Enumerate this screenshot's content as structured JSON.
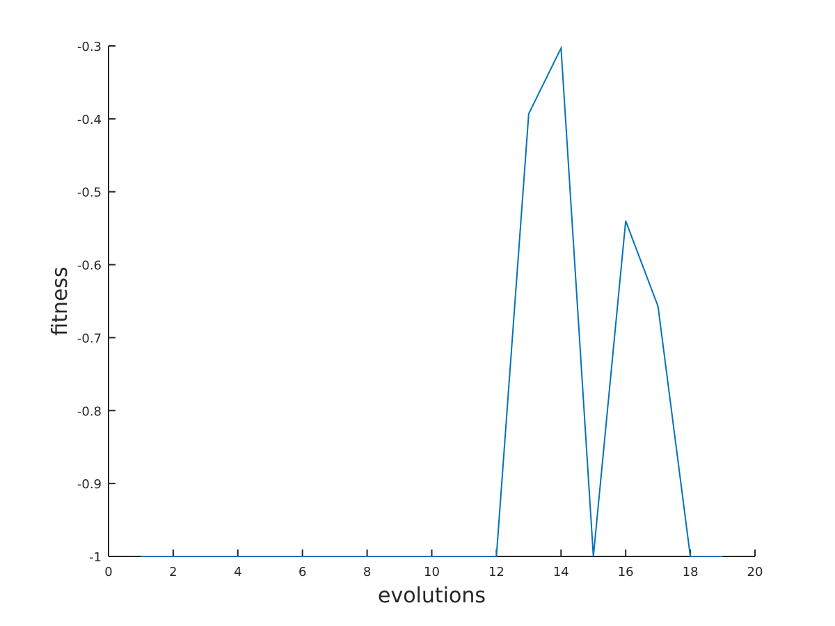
{
  "chart_data": {
    "type": "line",
    "title": "",
    "xlabel": "evolutions",
    "ylabel": "fitness",
    "xlim": [
      0,
      20
    ],
    "ylim": [
      -1,
      -0.3
    ],
    "xticks": [
      0,
      2,
      4,
      6,
      8,
      10,
      12,
      14,
      16,
      18,
      20
    ],
    "xtick_labels": [
      "0",
      "2",
      "4",
      "6",
      "8",
      "10",
      "12",
      "14",
      "16",
      "18",
      "20"
    ],
    "yticks": [
      -1,
      -0.9,
      -0.8,
      -0.7,
      -0.6,
      -0.5,
      -0.4,
      -0.3
    ],
    "ytick_labels": [
      "-1",
      "-0.9",
      "-0.8",
      "-0.7",
      "-0.6",
      "-0.5",
      "-0.4",
      "-0.3"
    ],
    "grid": false,
    "legend": "none",
    "series": [
      {
        "color": "#0072BD",
        "x": [
          1,
          2,
          3,
          4,
          5,
          6,
          7,
          8,
          9,
          10,
          11,
          12,
          13,
          14,
          15,
          16,
          17,
          18,
          19
        ],
        "y": [
          -1,
          -1,
          -1,
          -1,
          -1,
          -1,
          -1,
          -1,
          -1,
          -1,
          -1,
          -1,
          -0.393,
          -0.303,
          -1,
          -0.54,
          -0.657,
          -1,
          -1
        ]
      }
    ]
  }
}
